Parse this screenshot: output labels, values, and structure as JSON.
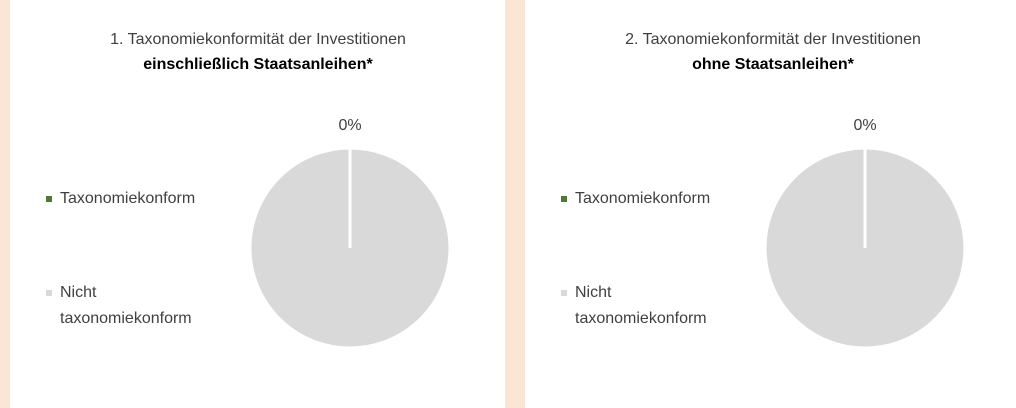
{
  "chart_data": [
    {
      "type": "pie",
      "title": "1. Taxonomiekonformität der Investitionen",
      "subtitle": "einschließlich Staatsanleihen*",
      "categories": [
        "Taxonomiekonform",
        "Nicht taxonomiekonform"
      ],
      "values": [
        0,
        100
      ],
      "value_labels": [
        "0%",
        null
      ],
      "colors": [
        "#4e7a35",
        "#d9d9d9"
      ],
      "legend": "left"
    },
    {
      "type": "pie",
      "title": "2. Taxonomiekonformität der Investitionen",
      "subtitle": "ohne Staatsanleihen*",
      "categories": [
        "Taxonomiekonform",
        "Nicht taxonomiekonform"
      ],
      "values": [
        0,
        100
      ],
      "value_labels": [
        "0%",
        null
      ],
      "colors": [
        "#4e7a35",
        "#d9d9d9"
      ],
      "legend": "left"
    }
  ]
}
